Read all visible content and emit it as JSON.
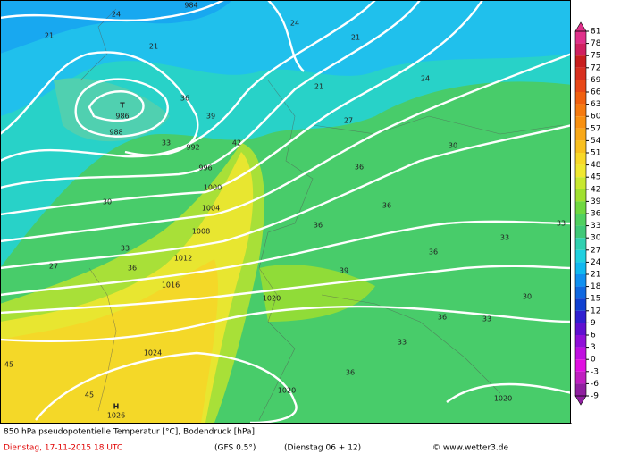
{
  "map": {
    "labels": [
      "984",
      "T",
      "986",
      "988",
      "992",
      "996",
      "1000",
      "1004",
      "1008",
      "1012",
      "1016",
      "1020",
      "1024",
      "1020",
      "1020",
      "H",
      "1026",
      "24",
      "21",
      "21",
      "24",
      "21",
      "21",
      "24",
      "27",
      "30",
      "33",
      "36",
      "39",
      "42",
      "36",
      "36",
      "36",
      "39",
      "36",
      "33",
      "33",
      "30",
      "36",
      "33",
      "33",
      "36",
      "27",
      "30",
      "33",
      "36",
      "45",
      "45"
    ],
    "colorbar": {
      "ticks": [
        81,
        78,
        75,
        72,
        69,
        66,
        63,
        60,
        57,
        54,
        51,
        48,
        45,
        42,
        39,
        36,
        33,
        30,
        27,
        24,
        21,
        18,
        15,
        12,
        9,
        6,
        3,
        0,
        -3,
        -6,
        -9
      ],
      "colors": [
        "#e0308a",
        "#d02060",
        "#c81e1e",
        "#d83020",
        "#e84818",
        "#f06010",
        "#f57a10",
        "#f89010",
        "#f8a818",
        "#f8c020",
        "#f8d828",
        "#f0e830",
        "#c8e830",
        "#a0e030",
        "#70d840",
        "#50d060",
        "#40c878",
        "#30d0b0",
        "#20d0e0",
        "#10b8f0",
        "#1090f0",
        "#1068e0",
        "#1040d0",
        "#3020d0",
        "#6010d0",
        "#9010d8",
        "#c010e0",
        "#e010e0",
        "#c020c0",
        "#9020a0"
      ]
    }
  },
  "footer": {
    "title": "850 hPa pseudopotentielle Temperatur [°C], Bodendruck [hPa]",
    "date": "Dienstag, 17-11-2015  18 UTC",
    "model": "(GFS 0.5°)",
    "run": "(Dienstag 06 + 12)",
    "credit": "© www.wetter3.de"
  }
}
